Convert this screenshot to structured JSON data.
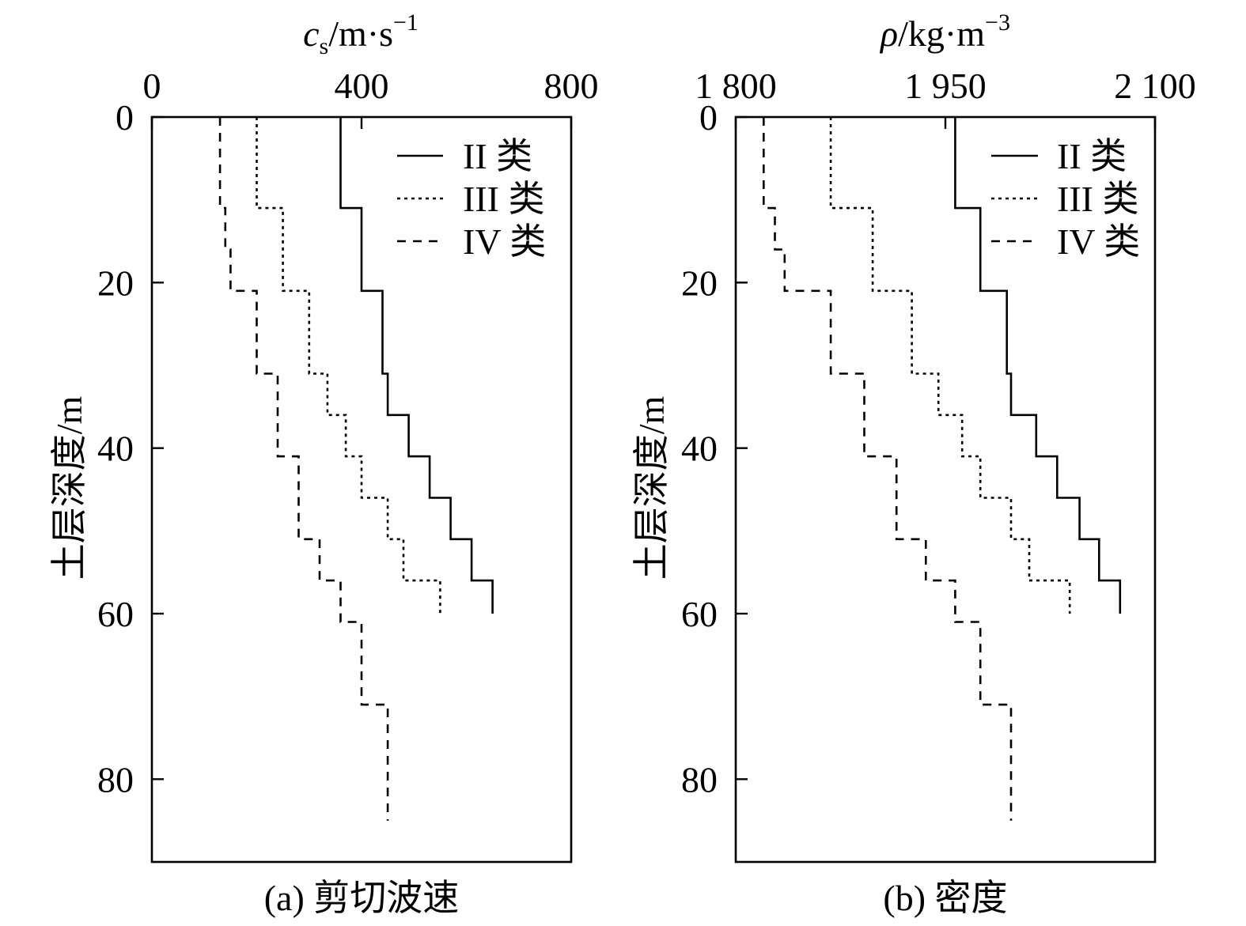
{
  "chart_data": [
    {
      "type": "line",
      "caption": "(a) 剪切波速",
      "xlabel": {
        "symbol": "c",
        "subscript": "s",
        "unit": "/m·s",
        "superscript": "−1"
      },
      "ylabel": "土层深度/m",
      "x_axis_position": "top",
      "y_axis_inverted": true,
      "xlim": [
        0,
        800
      ],
      "ylim": [
        0,
        90
      ],
      "xticks": [
        0,
        400,
        800
      ],
      "xtick_labels": [
        "0",
        "400",
        "800"
      ],
      "yticks": [
        0,
        20,
        40,
        60,
        80
      ],
      "ytick_labels": [
        "0",
        "20",
        "40",
        "60",
        "80"
      ],
      "grid": false,
      "legend": "top-right",
      "line_color": "#000000",
      "series": [
        {
          "name": "II 类",
          "style": "solid",
          "depth": [
            0,
            11,
            21,
            31,
            36,
            41,
            46,
            51,
            56,
            60
          ],
          "values": [
            360,
            400,
            440,
            450,
            490,
            530,
            570,
            610,
            650
          ]
        },
        {
          "name": "III 类",
          "style": "dotted",
          "depth": [
            0,
            11,
            21,
            31,
            36,
            41,
            46,
            51,
            56,
            60
          ],
          "values": [
            200,
            250,
            300,
            335,
            370,
            400,
            450,
            480,
            550
          ]
        },
        {
          "name": "IV 类",
          "style": "dashed",
          "depth": [
            0,
            11,
            16,
            21,
            31,
            41,
            51,
            56,
            61,
            71,
            85
          ],
          "values": [
            130,
            140,
            150,
            200,
            240,
            280,
            320,
            360,
            400,
            450
          ]
        }
      ]
    },
    {
      "type": "line",
      "caption": "(b) 密度",
      "xlabel": {
        "symbol": "ρ",
        "unit": "/kg·m",
        "superscript": "−3"
      },
      "ylabel": "土层深度/m",
      "x_axis_position": "top",
      "y_axis_inverted": true,
      "xlim": [
        1800,
        2100
      ],
      "ylim": [
        0,
        90
      ],
      "xticks": [
        1800,
        1950,
        2100
      ],
      "xtick_labels": [
        "1 800",
        "1 950",
        "2 100"
      ],
      "yticks": [
        0,
        20,
        40,
        60,
        80
      ],
      "ytick_labels": [
        "0",
        "20",
        "40",
        "60",
        "80"
      ],
      "grid": false,
      "legend": "top-right",
      "line_color": "#000000",
      "series": [
        {
          "name": "II 类",
          "style": "solid",
          "depth": [
            0,
            11,
            21,
            31,
            36,
            41,
            46,
            51,
            56,
            60
          ],
          "values": [
            1957,
            1975,
            1994,
            1997,
            2015,
            2030,
            2046,
            2060,
            2075
          ]
        },
        {
          "name": "III 类",
          "style": "dotted",
          "depth": [
            0,
            11,
            21,
            31,
            36,
            41,
            46,
            51,
            56,
            60
          ],
          "values": [
            1868,
            1898,
            1926,
            1945,
            1962,
            1975,
            1997,
            2010,
            2039
          ]
        },
        {
          "name": "IV 类",
          "style": "dashed",
          "depth": [
            0,
            11,
            16,
            21,
            31,
            41,
            51,
            56,
            61,
            71,
            85
          ],
          "values": [
            1820,
            1828,
            1835,
            1868,
            1892,
            1915,
            1936,
            1957,
            1975,
            1997
          ]
        }
      ]
    }
  ]
}
